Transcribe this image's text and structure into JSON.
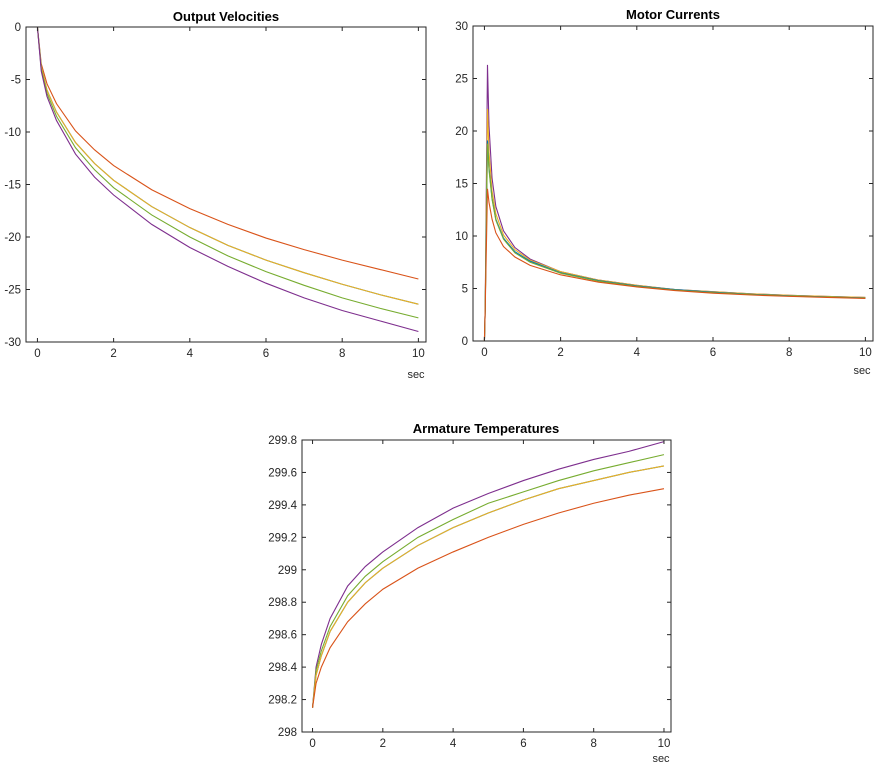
{
  "colors": {
    "blue": "#0072BD",
    "orange": "#D95319",
    "yellow": "#EDB120",
    "purple": "#7E2F8E",
    "green": "#77AC30",
    "axis": "#262626"
  },
  "chart_data": [
    {
      "id": "output-velocities",
      "type": "line",
      "title": "Output Velocities",
      "xlabel": "sec",
      "ylabel": "",
      "xlim": [
        -0.3,
        10.2
      ],
      "ylim": [
        -30,
        0
      ],
      "xticks": [
        0,
        2,
        4,
        6,
        8,
        10
      ],
      "yticks": [
        0,
        -5,
        -10,
        -15,
        -20,
        -25,
        -30
      ],
      "grid": false,
      "x": [
        0,
        0.1,
        0.25,
        0.5,
        1,
        1.5,
        2,
        3,
        4,
        5,
        6,
        7,
        8,
        9,
        10
      ],
      "series": [
        {
          "color_key": "orange",
          "values": [
            0,
            -3.5,
            -5.4,
            -7.3,
            -9.9,
            -11.7,
            -13.2,
            -15.5,
            -17.3,
            -18.8,
            -20.1,
            -21.2,
            -22.2,
            -23.1,
            -24.0
          ]
        },
        {
          "color_key": "blue",
          "values": [
            0,
            -3.8,
            -6.0,
            -8.1,
            -11.0,
            -13.0,
            -14.6,
            -17.1,
            -19.1,
            -20.8,
            -22.2,
            -23.4,
            -24.5,
            -25.5,
            -26.4
          ]
        },
        {
          "color_key": "yellow",
          "values": [
            0,
            -3.8,
            -6.0,
            -8.1,
            -11.0,
            -13.0,
            -14.6,
            -17.1,
            -19.1,
            -20.8,
            -22.2,
            -23.4,
            -24.5,
            -25.5,
            -26.4
          ]
        },
        {
          "color_key": "green",
          "values": [
            0,
            -4.0,
            -6.3,
            -8.5,
            -11.5,
            -13.6,
            -15.3,
            -17.9,
            -20.0,
            -21.8,
            -23.3,
            -24.6,
            -25.8,
            -26.8,
            -27.7
          ]
        },
        {
          "color_key": "purple",
          "values": [
            0,
            -4.2,
            -6.6,
            -8.9,
            -12.1,
            -14.3,
            -16.0,
            -18.8,
            -21.0,
            -22.8,
            -24.4,
            -25.8,
            -27.0,
            -28.0,
            -29.0
          ]
        }
      ]
    },
    {
      "id": "motor-currents",
      "type": "line",
      "title": "Motor Currents",
      "xlabel": "sec",
      "ylabel": "",
      "xlim": [
        -0.3,
        10.2
      ],
      "ylim": [
        0,
        30
      ],
      "xticks": [
        0,
        2,
        4,
        6,
        8,
        10
      ],
      "yticks": [
        0,
        5,
        10,
        15,
        20,
        25,
        30
      ],
      "grid": false,
      "x": [
        0,
        0.02,
        0.08,
        0.12,
        0.2,
        0.3,
        0.5,
        0.8,
        1.2,
        2,
        3,
        4,
        5,
        6,
        7,
        8,
        9,
        10
      ],
      "series": [
        {
          "color_key": "purple",
          "values": [
            0,
            3,
            26.3,
            20.5,
            15.5,
            12.8,
            10.5,
            8.9,
            7.8,
            6.6,
            5.8,
            5.3,
            4.9,
            4.7,
            4.5,
            4.35,
            4.25,
            4.15
          ]
        },
        {
          "color_key": "yellow",
          "values": [
            0,
            3,
            22.1,
            18.0,
            14.3,
            12.1,
            10.1,
            8.7,
            7.7,
            6.6,
            5.8,
            5.3,
            4.9,
            4.7,
            4.5,
            4.35,
            4.25,
            4.15
          ]
        },
        {
          "color_key": "blue",
          "values": [
            0,
            3,
            19.1,
            16.5,
            13.6,
            11.6,
            9.8,
            8.5,
            7.6,
            6.5,
            5.75,
            5.25,
            4.9,
            4.65,
            4.45,
            4.3,
            4.2,
            4.1
          ]
        },
        {
          "color_key": "green",
          "values": [
            0,
            3,
            18.8,
            16.3,
            13.5,
            11.5,
            9.7,
            8.4,
            7.5,
            6.45,
            5.7,
            5.2,
            4.85,
            4.6,
            4.42,
            4.28,
            4.18,
            4.08
          ]
        },
        {
          "color_key": "orange",
          "values": [
            0,
            3,
            14.5,
            13.2,
            11.6,
            10.3,
            9.0,
            8.0,
            7.2,
            6.3,
            5.6,
            5.15,
            4.8,
            4.55,
            4.38,
            4.25,
            4.15,
            4.05
          ]
        }
      ]
    },
    {
      "id": "armature-temperatures",
      "type": "line",
      "title": "Armature Temperatures",
      "xlabel": "sec",
      "ylabel": "",
      "xlim": [
        -0.3,
        10.2
      ],
      "ylim": [
        298,
        299.8
      ],
      "xticks": [
        0,
        2,
        4,
        6,
        8,
        10
      ],
      "yticks": [
        299.8,
        299.6,
        299.4,
        299.2,
        299,
        298.8,
        298.6,
        298.4,
        298.2,
        298
      ],
      "ytick_labels": [
        "299.8",
        "299.6",
        "299.4",
        "299.2",
        "299",
        "298.8",
        "298.6",
        "298.4",
        "298.2",
        "298"
      ],
      "grid": false,
      "x": [
        0,
        0.1,
        0.25,
        0.5,
        1,
        1.5,
        2,
        3,
        4,
        5,
        6,
        7,
        8,
        9,
        10
      ],
      "series": [
        {
          "color_key": "purple",
          "values": [
            298.15,
            298.4,
            298.54,
            298.7,
            298.9,
            299.02,
            299.11,
            299.26,
            299.38,
            299.47,
            299.55,
            299.62,
            299.68,
            299.73,
            299.79
          ]
        },
        {
          "color_key": "green",
          "values": [
            298.15,
            298.38,
            298.5,
            298.65,
            298.84,
            298.96,
            299.05,
            299.2,
            299.31,
            299.41,
            299.48,
            299.55,
            299.61,
            299.66,
            299.71
          ]
        },
        {
          "color_key": "blue",
          "values": [
            298.15,
            298.35,
            298.47,
            298.62,
            298.8,
            298.92,
            299.01,
            299.15,
            299.26,
            299.35,
            299.43,
            299.5,
            299.55,
            299.6,
            299.64
          ]
        },
        {
          "color_key": "yellow",
          "values": [
            298.15,
            298.35,
            298.47,
            298.62,
            298.8,
            298.92,
            299.01,
            299.15,
            299.26,
            299.35,
            299.43,
            299.5,
            299.55,
            299.6,
            299.64
          ]
        },
        {
          "color_key": "orange",
          "values": [
            298.15,
            298.3,
            298.4,
            298.52,
            298.68,
            298.79,
            298.88,
            299.01,
            299.11,
            299.2,
            299.28,
            299.35,
            299.41,
            299.46,
            299.5
          ]
        }
      ]
    }
  ]
}
